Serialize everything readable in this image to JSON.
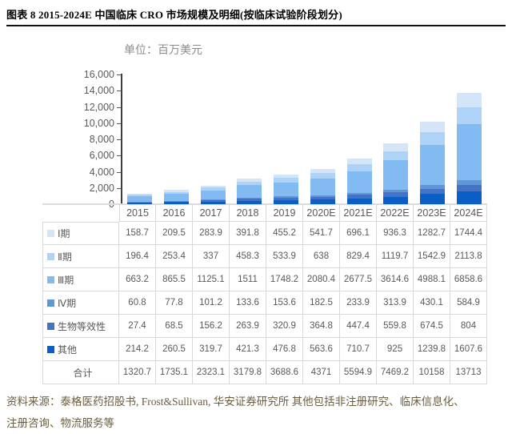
{
  "report": {
    "figure_title": "图表 8 2015-2024E 中国临床 CRO 市场规模及明细(按临床试验阶段划分)",
    "source_line1": "资料来源：泰格医药招股书, Frost&Sullivan, 华安证券研究所  其他包括非注册研究、临床信息化、",
    "source_line2": "注册咨询、物流服务等"
  },
  "chart_data": {
    "type": "bar",
    "stacked": true,
    "title": "单位：百万美元",
    "unit": "百万美元",
    "categories": [
      "2015",
      "2016",
      "2017",
      "2018",
      "2019",
      "2020E",
      "2021E",
      "2022E",
      "2023E",
      "2024E"
    ],
    "series": [
      {
        "name": "Ⅰ期",
        "color": "#d5e5f8",
        "values": [
          158.7,
          209.5,
          283.9,
          391.8,
          455.2,
          541.7,
          696.1,
          936.3,
          1282.7,
          1744.4
        ]
      },
      {
        "name": "Ⅱ期",
        "color": "#aed3f7",
        "values": [
          196.4,
          253.4,
          337,
          458.3,
          533.9,
          638,
          829.4,
          1119.7,
          1542.9,
          2113.8
        ]
      },
      {
        "name": "Ⅲ期",
        "color": "#82bbf2",
        "values": [
          663.2,
          865.5,
          1125.1,
          1511,
          1748.2,
          2080.4,
          2677.5,
          3614.6,
          4988.1,
          6858.6
        ]
      },
      {
        "name": "Ⅳ期",
        "color": "#6095d6",
        "values": [
          60.8,
          77.8,
          101.2,
          133.6,
          153.6,
          182.5,
          233.9,
          313.9,
          430.1,
          584.9
        ]
      },
      {
        "name": "生物等效性",
        "color": "#4472c4",
        "values": [
          27.4,
          68.5,
          156.2,
          263.9,
          320.9,
          364.8,
          447.4,
          559.8,
          674.5,
          804
        ]
      },
      {
        "name": "其他",
        "color": "#0a5ec6",
        "values": [
          214.2,
          260.5,
          319.7,
          421.3,
          476.8,
          563.6,
          710.7,
          925,
          1239.8,
          1607.6
        ]
      }
    ],
    "total_row": {
      "label": "合计",
      "values": [
        1320.7,
        1735.1,
        2323.1,
        3179.8,
        3688.6,
        4371,
        5594.9,
        7469.2,
        10158,
        13713
      ]
    },
    "ylim": [
      0,
      16000
    ],
    "y_tick_step": 2000,
    "y_tick_labels": [
      "16,000",
      "14,000",
      "12,000",
      "10,000",
      "8,000",
      "6,000",
      "4,000",
      "2,000",
      "0"
    ],
    "stack_bottom_to_top": [
      "其他",
      "生物等效性",
      "Ⅳ期",
      "Ⅲ期",
      "Ⅱ期",
      "Ⅰ期"
    ],
    "grid": false,
    "legend_position": "table-rows-left",
    "xlabel": "",
    "ylabel": ""
  }
}
